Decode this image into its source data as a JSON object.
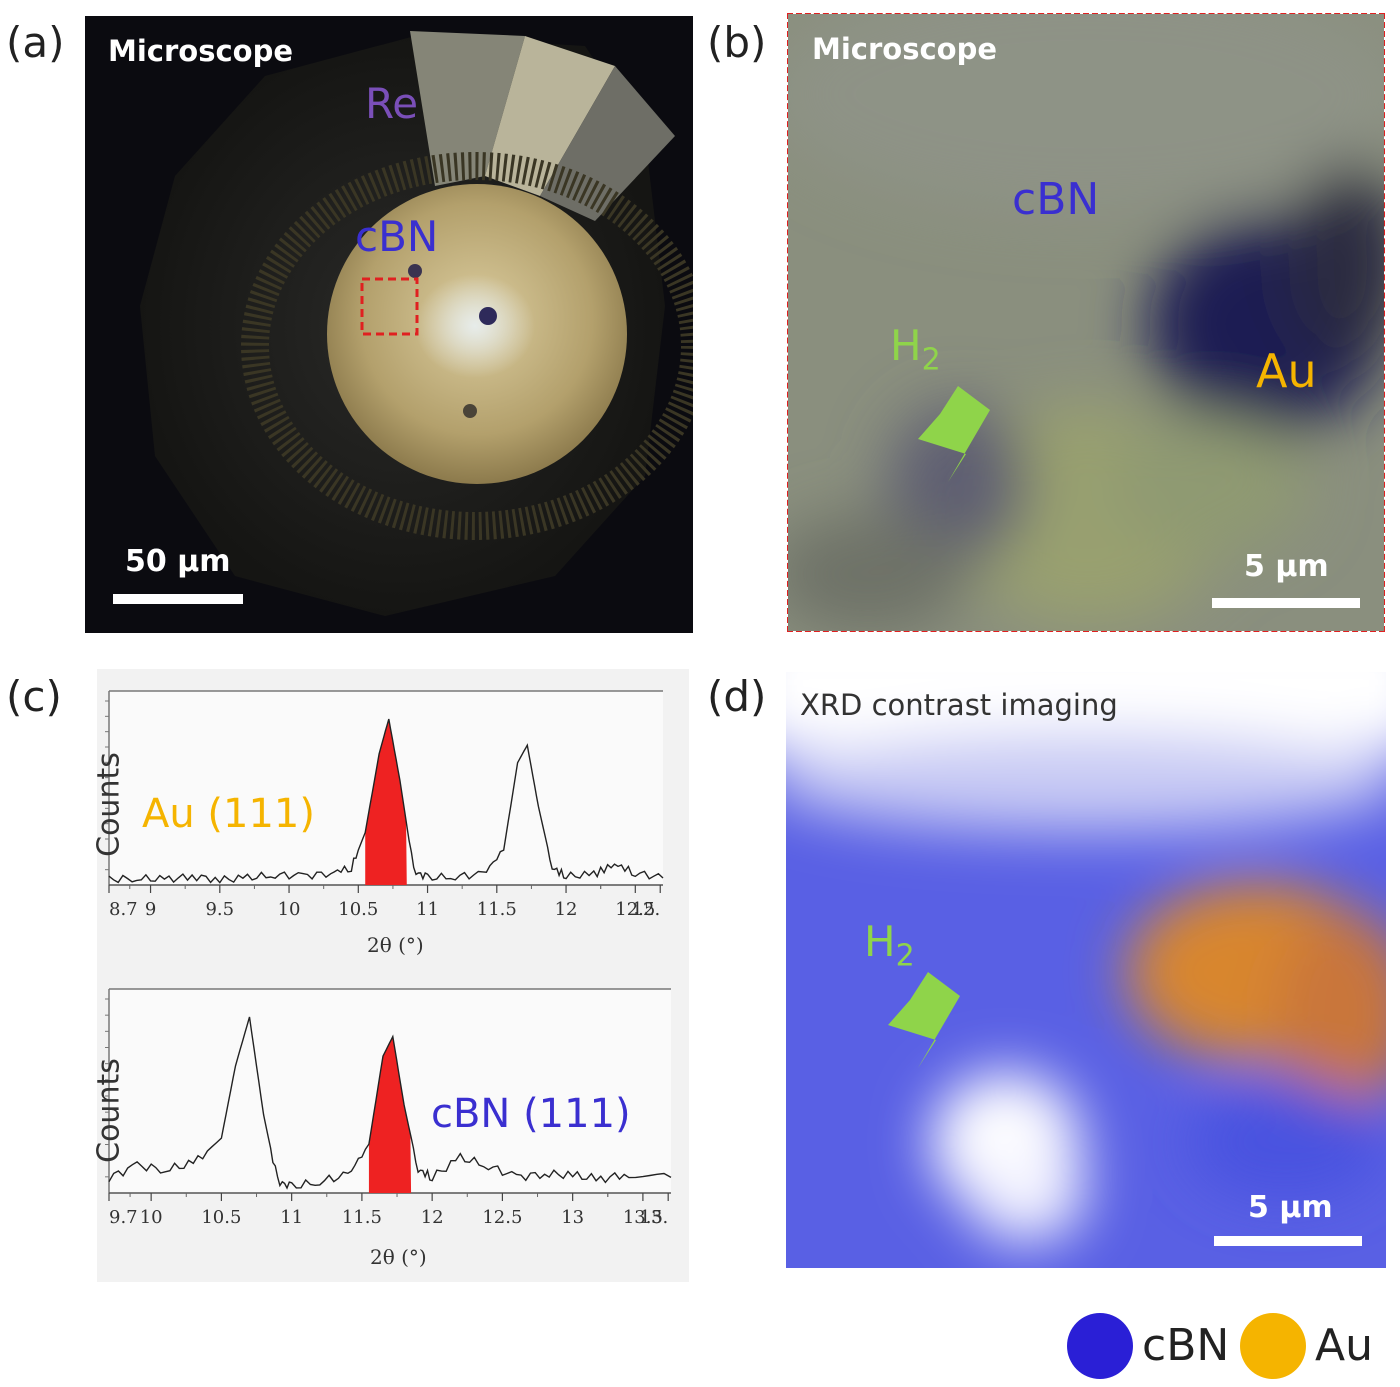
{
  "panel_a": {
    "letter": "(a)",
    "title": "Microscope",
    "label_re": "Re",
    "label_cbn": "cBN",
    "scale_label": "50 µm"
  },
  "panel_b": {
    "letter": "(b)",
    "title": "Microscope",
    "label_cbn": "cBN",
    "label_h2": "H",
    "label_h2_sub": "2",
    "label_au": "Au",
    "scale_label": "5 µm"
  },
  "panel_c": {
    "letter": "(c)",
    "top_plot": {
      "ylabel": "Counts",
      "xlabel": "2θ (°)",
      "annotation": "Au (111)",
      "ticks": [
        "8.7",
        "9",
        "9.5",
        "10",
        "10.5",
        "11",
        "11.5",
        "12",
        "12.5",
        "12."
      ]
    },
    "bottom_plot": {
      "ylabel": "Counts",
      "xlabel": "2θ (°)",
      "annotation": "cBN (111)",
      "ticks": [
        "9.7",
        "10",
        "10.5",
        "11",
        "11.5",
        "12",
        "12.5",
        "13",
        "13.5",
        "13."
      ]
    }
  },
  "panel_d": {
    "letter": "(d)",
    "title": "XRD contrast imaging",
    "label_h2": "H",
    "label_h2_sub": "2",
    "scale_label": "5 µm"
  },
  "legend": {
    "items": [
      {
        "label": "cBN",
        "color": "#2a1fd6"
      },
      {
        "label": "Au",
        "color": "#f5b400"
      }
    ]
  },
  "colors": {
    "cbn_label": "#3a2fd0",
    "au_label": "#f5b400",
    "h2_label": "#8fd44a",
    "re_label": "#7a4fb8",
    "peak_fill": "#ee2222",
    "frame_dash": "#e02020"
  },
  "chart_data": [
    {
      "type": "line",
      "title": "",
      "xlabel": "2θ (°)",
      "ylabel": "Counts",
      "xlim": [
        8.7,
        12.7
      ],
      "x": [
        8.7,
        8.9,
        9.1,
        9.3,
        9.5,
        9.7,
        9.9,
        10.1,
        10.3,
        10.45,
        10.55,
        10.65,
        10.72,
        10.8,
        10.9,
        11.0,
        11.2,
        11.4,
        11.55,
        11.65,
        11.72,
        11.8,
        11.9,
        12.0,
        12.2,
        12.35,
        12.5,
        12.7
      ],
      "series": [
        {
          "name": "",
          "values": [
            3,
            4,
            3,
            5,
            3,
            4,
            6,
            5,
            7,
            10,
            30,
            75,
            95,
            60,
            8,
            4,
            5,
            6,
            20,
            70,
            80,
            45,
            10,
            5,
            6,
            12,
            7,
            4
          ]
        }
      ],
      "highlight_range": [
        10.55,
        10.85
      ],
      "annotation": "Au (111)"
    },
    {
      "type": "line",
      "title": "",
      "xlabel": "2θ (°)",
      "ylabel": "Counts",
      "xlim": [
        9.7,
        13.7
      ],
      "x": [
        9.7,
        9.9,
        10.1,
        10.3,
        10.5,
        10.6,
        10.7,
        10.8,
        10.9,
        11.0,
        11.2,
        11.4,
        11.55,
        11.65,
        11.72,
        11.8,
        11.9,
        12.0,
        12.2,
        12.4,
        12.6,
        12.8,
        13.0,
        13.2,
        13.4,
        13.7
      ],
      "series": [
        {
          "name": "",
          "values": [
            8,
            14,
            12,
            15,
            28,
            65,
            90,
            40,
            6,
            3,
            6,
            9,
            25,
            70,
            80,
            45,
            12,
            8,
            18,
            14,
            8,
            10,
            9,
            7,
            10,
            8
          ]
        }
      ],
      "highlight_range": [
        11.55,
        11.85
      ],
      "annotation": "cBN (111)"
    }
  ]
}
